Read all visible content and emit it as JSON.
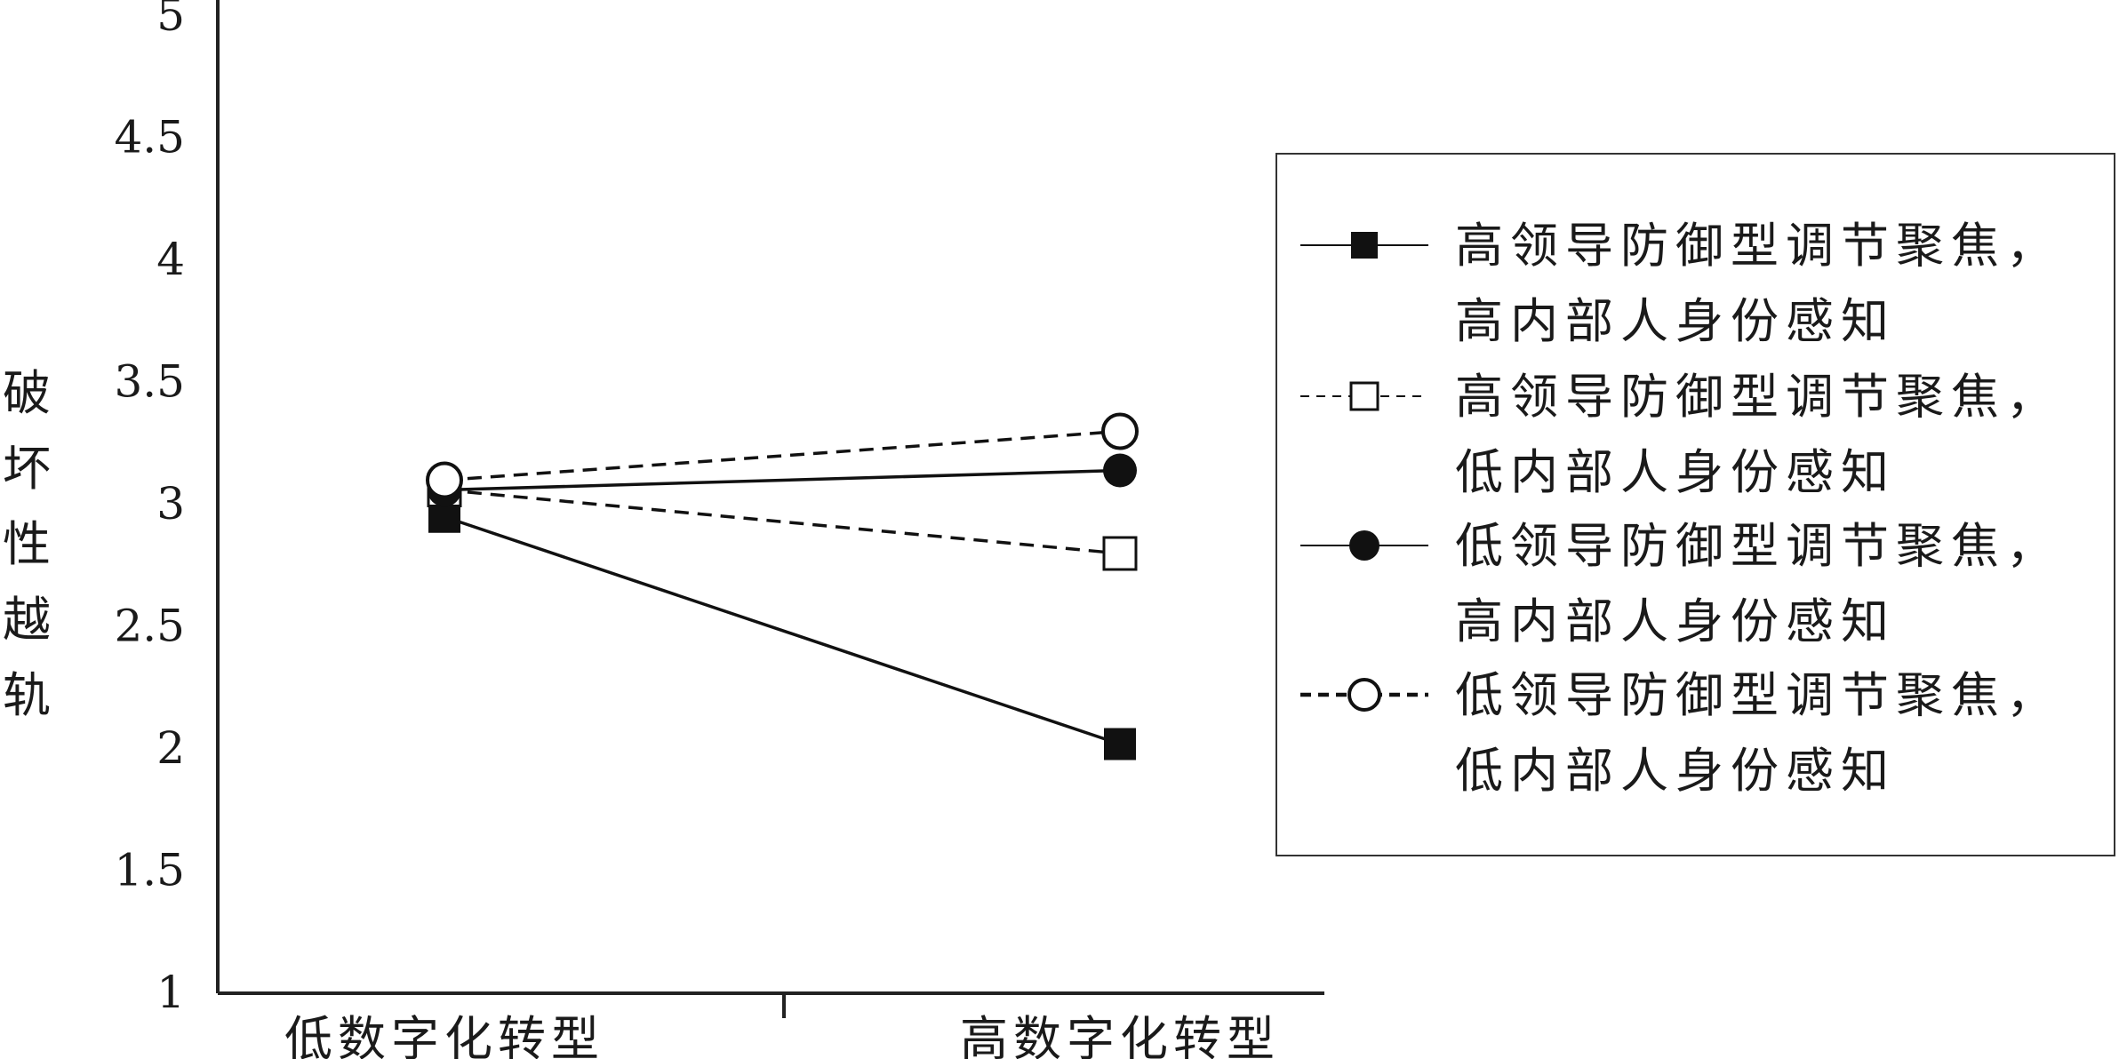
{
  "chart_data": {
    "type": "line",
    "title": "",
    "xlabel": "",
    "ylabel": "破坏性越轨",
    "categories": [
      "低数字化转型",
      "高数字化转型"
    ],
    "ylim": [
      1,
      5
    ],
    "yticks": [
      "1",
      "1.5",
      "2",
      "2.5",
      "3",
      "3.5",
      "4",
      "4.5",
      "5"
    ],
    "legend_position": "right",
    "series": [
      {
        "name_line1": "高领导防御型调节聚焦，",
        "name_line2": "高内部人身份感知",
        "values": [
          2.95,
          2.02
        ],
        "line": "solid",
        "marker": "filled-square"
      },
      {
        "name_line1": "高领导防御型调节聚焦，",
        "name_line2": "低内部人身份感知",
        "values": [
          3.06,
          2.8
        ],
        "line": "dashed",
        "marker": "open-square"
      },
      {
        "name_line1": "低领导防御型调节聚焦，",
        "name_line2": "高内部人身份感知",
        "values": [
          3.06,
          3.14
        ],
        "line": "solid",
        "marker": "filled-circle"
      },
      {
        "name_line1": "低领导防御型调节聚焦，",
        "name_line2": "低内部人身份感知",
        "values": [
          3.1,
          3.3
        ],
        "line": "dashed",
        "marker": "open-circle"
      }
    ]
  }
}
